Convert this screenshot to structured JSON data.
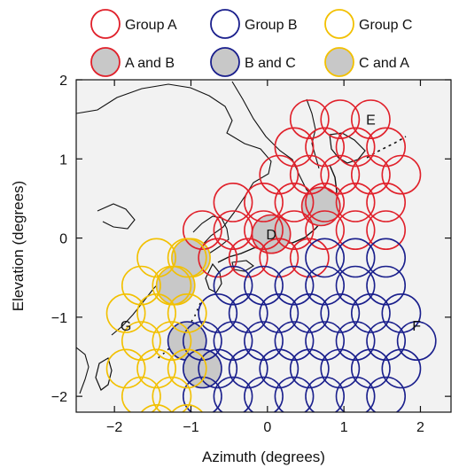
{
  "chart_data": {
    "type": "scatter",
    "title": "",
    "xlabel": "Azimuth (degrees)",
    "ylabel": "Elevation (degrees)",
    "xlim": [
      -2.5,
      2.4
    ],
    "ylim": [
      -2.2,
      2.0
    ],
    "x_ticks": [
      -2,
      -1,
      0,
      1,
      2
    ],
    "y_ticks": [
      -2,
      -1,
      0,
      1,
      2
    ],
    "x_tick_labels": [
      "−2",
      "−1",
      "0",
      "1",
      "2"
    ],
    "y_tick_labels": [
      "−2",
      "−1",
      "0",
      "1",
      "2"
    ],
    "grid": false,
    "legend_position": "top",
    "circle_radius_deg": 0.25,
    "colors": {
      "group_a": "#e0202a",
      "group_b": "#1a1f8c",
      "group_c": "#f2c000",
      "overlap_fill": "#c8c8c8",
      "map_background": "#f2f2f2",
      "coastline": "#111111"
    },
    "legend": [
      {
        "label": "Group A",
        "stroke": "#e0202a",
        "fill": "none"
      },
      {
        "label": "Group B",
        "stroke": "#1a1f8c",
        "fill": "none"
      },
      {
        "label": "Group C",
        "stroke": "#f2c000",
        "fill": "none"
      },
      {
        "label": "A and B",
        "stroke": "#e0202a",
        "fill": "#c8c8c8"
      },
      {
        "label": "B and C",
        "stroke": "#1a1f8c",
        "fill": "#c8c8c8"
      },
      {
        "label": "C and A",
        "stroke": "#f2c000",
        "fill": "#c8c8c8"
      }
    ],
    "series": [
      {
        "name": "Group A",
        "color": "#e0202a",
        "x": [
          0.55,
          0.95,
          1.35,
          0.35,
          0.75,
          1.15,
          1.55,
          0.15,
          0.55,
          0.95,
          1.35,
          1.75,
          -0.45,
          -0.05,
          0.35,
          0.75,
          1.15,
          1.55,
          -0.85,
          -0.45,
          -0.05,
          0.35,
          0.75,
          1.15,
          1.55,
          -0.65,
          -0.25,
          0.15,
          0.55
        ],
        "y": [
          1.5,
          1.5,
          1.5,
          1.15,
          1.15,
          1.15,
          1.15,
          0.8,
          0.8,
          0.8,
          0.8,
          0.8,
          0.45,
          0.45,
          0.45,
          0.45,
          0.45,
          0.45,
          0.1,
          0.1,
          0.1,
          0.1,
          0.1,
          0.1,
          0.1,
          -0.25,
          -0.25,
          -0.25,
          -0.25
        ]
      },
      {
        "name": "Group B",
        "color": "#1a1f8c",
        "x": [
          0.75,
          1.15,
          1.55,
          -0.45,
          -0.05,
          0.35,
          0.75,
          1.15,
          1.55,
          -0.65,
          -0.25,
          0.15,
          0.55,
          0.95,
          1.35,
          1.75,
          -0.85,
          -0.45,
          -0.05,
          0.35,
          0.75,
          1.15,
          1.55,
          1.95,
          -0.65,
          -0.25,
          0.15,
          0.55,
          0.95,
          1.35,
          1.75,
          -0.85,
          -0.45,
          -0.05,
          0.35,
          0.75,
          1.15,
          1.55
        ],
        "y": [
          -0.25,
          -0.25,
          -0.25,
          -0.6,
          -0.6,
          -0.6,
          -0.6,
          -0.6,
          -0.6,
          -0.95,
          -0.95,
          -0.95,
          -0.95,
          -0.95,
          -0.95,
          -0.95,
          -1.3,
          -1.3,
          -1.3,
          -1.3,
          -1.3,
          -1.3,
          -1.3,
          -1.3,
          -1.65,
          -1.65,
          -1.65,
          -1.65,
          -1.65,
          -1.65,
          -1.65,
          -2.0,
          -2.0,
          -2.0,
          -2.0,
          -2.0,
          -2.0,
          -2.0
        ]
      },
      {
        "name": "Group C",
        "color": "#f2c000",
        "x": [
          -1.45,
          -1.05,
          -1.65,
          -1.25,
          -1.85,
          -1.45,
          -1.05,
          -1.65,
          -1.25,
          -1.85,
          -1.45,
          -1.05,
          -1.65,
          -1.25,
          -1.45,
          -1.05
        ],
        "y": [
          -0.25,
          -0.25,
          -0.6,
          -0.6,
          -0.95,
          -0.95,
          -0.95,
          -1.3,
          -1.3,
          -1.65,
          -1.65,
          -1.65,
          -2.0,
          -2.0,
          -2.35,
          -2.35
        ]
      },
      {
        "name": "A and B",
        "color": "#e0202a",
        "fill": "#c8c8c8",
        "x": [
          0.7,
          0.05
        ],
        "y": [
          0.4,
          0.05
        ]
      },
      {
        "name": "B and C",
        "color": "#1a1f8c",
        "fill": "#c8c8c8",
        "x": [
          -1.05,
          -0.85
        ],
        "y": [
          -1.3,
          -1.65
        ]
      },
      {
        "name": "C and A",
        "color": "#f2c000",
        "fill": "#c8c8c8",
        "x": [
          -1.0,
          -1.2
        ],
        "y": [
          -0.25,
          -0.6
        ]
      }
    ],
    "annotations": [
      {
        "text": "D",
        "x": 0.05,
        "y": 0.05
      },
      {
        "text": "E",
        "x": 1.35,
        "y": 1.5
      },
      {
        "text": "F",
        "x": 1.95,
        "y": -1.1
      },
      {
        "text": "G",
        "x": -1.85,
        "y": -1.1
      }
    ]
  }
}
